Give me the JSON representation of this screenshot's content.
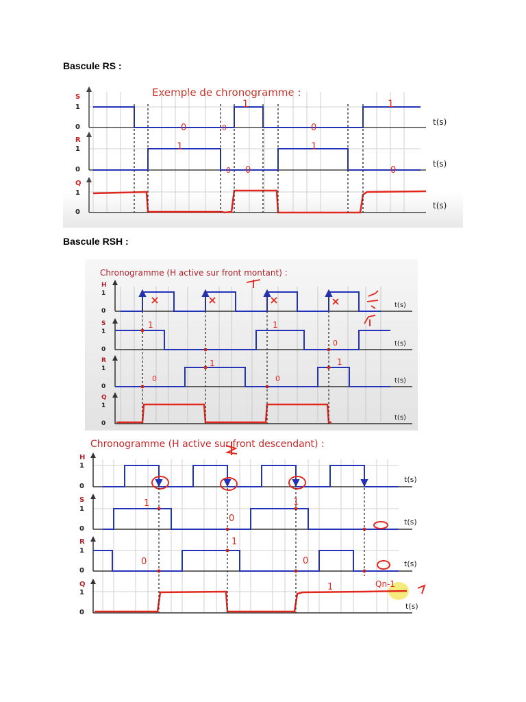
{
  "page": {
    "heading_rs": "Bascule RS :",
    "heading_rsh": "Bascule RSH :"
  },
  "colors": {
    "signal": "#2333b8",
    "annotation": "#e0281e",
    "grid": "#c6c6c6",
    "highlight": "#f4e866"
  },
  "diagram_rs": {
    "title": "Exemple de chronogramme :",
    "signals": [
      {
        "name": "S",
        "one": "1",
        "zero": "0",
        "axis": "t(s)"
      },
      {
        "name": "R",
        "one": "1",
        "zero": "0",
        "axis": "t(s)"
      },
      {
        "name": "Q",
        "one": "1",
        "zero": "0",
        "axis": "t(s)"
      }
    ],
    "notes": {
      "s1": "0",
      "s2": "0",
      "s3": "1",
      "s4": "0",
      "s5": "1",
      "r1": "1",
      "r2": "0",
      "r3": "0",
      "r4": "1",
      "r5": "0"
    }
  },
  "diagram_rsh_rising": {
    "title": "Chronogramme (H active sur front montant) :",
    "signals": [
      {
        "name": "H",
        "one": "1",
        "zero": "0",
        "axis": "t(s)"
      },
      {
        "name": "S",
        "one": "1",
        "zero": "0",
        "axis": "t(s)"
      },
      {
        "name": "R",
        "one": "1",
        "zero": "0",
        "axis": "t(s)"
      },
      {
        "name": "Q",
        "one": "1",
        "zero": "0",
        "axis": "t(s)"
      }
    ],
    "notes": {
      "s1": "1",
      "s2": "1",
      "s3": "0",
      "r1": "0",
      "r2": "1",
      "r3": "0",
      "r4": "1"
    }
  },
  "diagram_rsh_falling": {
    "title": "Chronogramme (H active sur front descendant) :",
    "signals": [
      {
        "name": "H",
        "one": "1",
        "zero": "0",
        "axis": "t(s)"
      },
      {
        "name": "S",
        "one": "1",
        "zero": "0",
        "axis": "t(s)"
      },
      {
        "name": "R",
        "one": "1",
        "zero": "0",
        "axis": "t(s)"
      },
      {
        "name": "Q",
        "one": "1",
        "zero": "0",
        "axis": "t(s)"
      }
    ],
    "notes": {
      "s1": "1",
      "s2": "0",
      "s3": "1",
      "r1": "0",
      "r2": "1",
      "r3": "0",
      "q1": "1",
      "q2": "Qn-1"
    }
  }
}
